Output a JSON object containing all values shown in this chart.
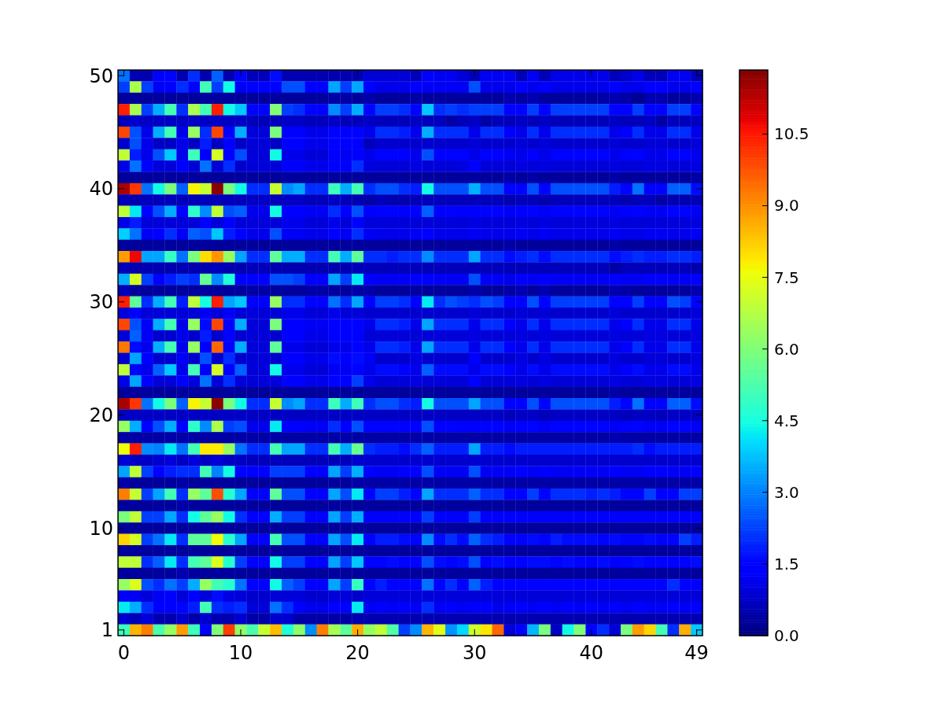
{
  "chart_data": {
    "type": "heatmap",
    "categories": [
      "0",
      null,
      null,
      null,
      null,
      null,
      null,
      null,
      null,
      null,
      "10",
      null,
      null,
      null,
      null,
      null,
      null,
      null,
      null,
      null,
      "20",
      null,
      null,
      null,
      null,
      null,
      null,
      null,
      null,
      null,
      "30",
      null,
      null,
      null,
      null,
      null,
      null,
      null,
      null,
      null,
      "40",
      null,
      null,
      null,
      null,
      null,
      null,
      null,
      null,
      "49"
    ],
    "y_categories": [
      "50",
      null,
      null,
      null,
      null,
      null,
      null,
      null,
      null,
      null,
      "40",
      null,
      null,
      null,
      null,
      null,
      null,
      null,
      null,
      null,
      "30",
      null,
      null,
      null,
      null,
      null,
      null,
      null,
      null,
      null,
      "20",
      null,
      null,
      null,
      null,
      null,
      null,
      null,
      null,
      null,
      "10",
      null,
      null,
      null,
      null,
      null,
      null,
      null,
      null,
      "1"
    ],
    "clim": [
      0,
      11.84
    ],
    "cticks": [
      {
        "value": 0,
        "label": "0.0"
      },
      1.5,
      {
        "value": 3,
        "label": "3.0"
      },
      4.5,
      {
        "value": 6,
        "label": "6.0"
      },
      7.5,
      {
        "value": 9,
        "label": "9.0"
      },
      10.5
    ],
    "cells": [
      [
        2.8,
        0.5,
        0.5,
        1.4,
        1.5,
        0.5,
        2.0,
        0.5,
        2.6,
        0.5,
        1.4,
        0.6,
        0.6,
        1.6,
        0.5,
        0.5,
        0.5,
        0.5,
        0.5,
        0.5,
        0.5,
        0.9,
        0.9,
        0.9,
        0.9,
        0.6,
        1.4,
        1.2,
        1.2,
        0.9,
        0.6,
        1.2,
        1.2,
        1.2,
        0.6,
        1.2,
        0.6,
        1.1,
        1.1,
        1.1,
        1.1,
        1.1,
        0.6,
        0.8,
        1.1,
        0.6,
        0.6,
        1.2,
        1.2,
        0.6
      ],
      [
        2.2,
        6.6,
        2.2,
        1.2,
        1.4,
        2.0,
        1.5,
        5.1,
        2.2,
        4.4,
        1.2,
        1.4,
        1.4,
        1.4,
        2.4,
        2.4,
        1.4,
        1.4,
        3.4,
        2.2,
        3.4,
        1.4,
        1.1,
        1.1,
        1.1,
        1.4,
        1.2,
        1.2,
        1.2,
        1.2,
        2.4,
        1.1,
        1.1,
        1.1,
        1.4,
        1.1,
        1.4,
        1.1,
        1.1,
        1.1,
        1.1,
        1.1,
        1.4,
        1.1,
        1.1,
        1.4,
        1.4,
        1.1,
        1.1,
        1.4
      ],
      [
        0.3,
        0.3,
        0.3,
        0.3,
        0.3,
        0.3,
        0.3,
        0.3,
        0.3,
        0.3,
        0.3,
        0.3,
        0.3,
        0.3,
        0.3,
        0.3,
        0.3,
        0.3,
        0.4,
        0.4,
        0.3,
        0.4,
        0.3,
        0.3,
        0.3,
        0.4,
        0.3,
        0.3,
        0.3,
        0.3,
        0.3,
        0.3,
        0.3,
        0.5,
        0.4,
        0.5,
        0.3,
        0.3,
        0.3,
        0.3,
        0.3,
        0.4,
        0.5,
        0.4,
        0.2,
        0.5,
        0.5,
        0.3,
        0.3,
        0.5
      ],
      [
        10.4,
        6.6,
        2.2,
        3.5,
        5.1,
        2.0,
        6.6,
        5.1,
        10.4,
        4.4,
        3.8,
        1.5,
        1.5,
        6.0,
        2.2,
        2.0,
        1.5,
        1.5,
        3.1,
        2.2,
        3.5,
        1.5,
        2.2,
        2.2,
        2.0,
        1.5,
        3.8,
        2.0,
        2.2,
        2.0,
        2.2,
        2.2,
        2.2,
        1.5,
        1.5,
        2.2,
        1.5,
        2.2,
        2.2,
        2.2,
        2.2,
        2.2,
        1.5,
        1.5,
        2.2,
        1.5,
        1.5,
        2.2,
        2.2,
        1.5
      ],
      [
        0.6,
        0.8,
        0.7,
        0.7,
        0.7,
        0.7,
        0.7,
        0.7,
        0.7,
        0.7,
        0.7,
        0.6,
        0.6,
        0.6,
        0.7,
        0.7,
        0.6,
        0.6,
        0.7,
        0.6,
        0.6,
        0.7,
        0.6,
        0.6,
        0.6,
        0.7,
        0.6,
        0.6,
        0.4,
        0.6,
        0.7,
        0.4,
        0.6,
        0.6,
        0.7,
        0.6,
        0.7,
        0.6,
        0.6,
        0.6,
        0.6,
        0.6,
        0.7,
        0.6,
        0.6,
        0.7,
        0.4,
        0.6,
        0.6,
        0.7
      ],
      [
        9.9,
        2.4,
        1.1,
        3.5,
        5.1,
        1.1,
        6.3,
        2.0,
        9.9,
        1.4,
        3.5,
        0.9,
        0.9,
        5.9,
        1.4,
        1.4,
        1.1,
        1.1,
        1.5,
        1.4,
        1.5,
        1.1,
        2.0,
        2.0,
        1.8,
        1.1,
        3.5,
        2.0,
        2.0,
        2.0,
        1.1,
        2.0,
        2.0,
        1.4,
        1.1,
        2.0,
        1.1,
        2.0,
        2.0,
        2.0,
        2.0,
        2.0,
        1.1,
        1.4,
        2.0,
        1.1,
        1.1,
        2.0,
        2.0,
        1.1
      ],
      [
        0.8,
        2.4,
        1.1,
        0.7,
        0.7,
        1.1,
        0.7,
        1.8,
        0.7,
        1.4,
        0.7,
        0.9,
        0.9,
        0.7,
        1.4,
        1.4,
        1.1,
        1.1,
        1.4,
        1.4,
        1.3,
        0.6,
        0.8,
        0.8,
        0.8,
        0.8,
        0.8,
        0.8,
        0.8,
        0.8,
        0.9,
        0.8,
        0.8,
        0.8,
        0.9,
        0.8,
        0.9,
        0.8,
        0.8,
        0.8,
        0.8,
        0.8,
        0.9,
        0.8,
        0.8,
        0.9,
        0.9,
        0.8,
        0.8,
        0.9
      ],
      [
        6.9,
        1.8,
        1.1,
        2.4,
        3.8,
        1.1,
        5.0,
        1.4,
        7.2,
        1.4,
        2.4,
        0.9,
        0.9,
        4.4,
        1.1,
        1.1,
        0.9,
        0.9,
        1.4,
        1.2,
        1.4,
        1.1,
        1.5,
        1.5,
        1.4,
        1.1,
        2.4,
        1.5,
        1.5,
        1.5,
        1.1,
        1.5,
        1.5,
        1.2,
        1.1,
        1.4,
        1.1,
        1.5,
        1.5,
        1.5,
        1.5,
        1.5,
        1.1,
        1.4,
        1.5,
        1.1,
        1.1,
        1.5,
        1.5,
        1.1
      ],
      [
        1.1,
        2.8,
        1.4,
        0.9,
        0.9,
        1.4,
        0.9,
        2.8,
        0.9,
        2.0,
        0.8,
        0.9,
        0.9,
        0.9,
        1.4,
        1.4,
        1.1,
        1.1,
        1.4,
        1.4,
        2.0,
        1.0,
        0.9,
        0.9,
        0.9,
        1.0,
        0.9,
        0.9,
        0.9,
        1.0,
        1.4,
        0.9,
        0.9,
        0.9,
        1.0,
        0.9,
        1.0,
        0.9,
        0.9,
        0.9,
        0.9,
        0.9,
        1.0,
        0.9,
        0.9,
        1.0,
        1.0,
        0.9,
        0.9,
        1.0
      ],
      [
        0.3,
        0.3,
        0.3,
        0.3,
        0.3,
        0.3,
        0.3,
        0.3,
        0.3,
        0.3,
        0.3,
        0.3,
        0.3,
        0.3,
        0.3,
        0.3,
        0.3,
        0.3,
        0.3,
        0.3,
        0.3,
        0.3,
        0.3,
        0.3,
        0.3,
        0.3,
        0.3,
        0.3,
        0.3,
        0.3,
        0.3,
        0.3,
        0.3,
        0.4,
        0.3,
        0.4,
        0.3,
        0.3,
        0.3,
        0.3,
        0.3,
        0.3,
        0.4,
        0.3,
        0.3,
        0.3,
        0.3,
        0.3,
        0.3,
        0.4
      ],
      [
        11.4,
        10.1,
        2.8,
        4.4,
        5.9,
        2.6,
        7.7,
        7.0,
        11.7,
        5.9,
        4.4,
        2.0,
        2.0,
        7.0,
        3.1,
        3.4,
        2.0,
        2.0,
        5.0,
        3.5,
        5.1,
        2.0,
        2.4,
        2.4,
        2.0,
        1.8,
        4.4,
        2.4,
        2.4,
        2.4,
        3.5,
        2.4,
        2.4,
        1.5,
        1.5,
        2.4,
        1.5,
        2.4,
        2.4,
        2.4,
        2.4,
        2.4,
        1.8,
        1.5,
        2.8,
        1.5,
        1.5,
        2.6,
        2.6,
        1.6
      ],
      [
        0.6,
        0.5,
        0.6,
        0.6,
        0.6,
        0.6,
        0.6,
        0.6,
        0.6,
        0.6,
        0.6,
        0.7,
        0.7,
        0.6,
        0.7,
        0.7,
        0.6,
        0.6,
        0.7,
        0.6,
        0.5,
        0.4,
        0.6,
        0.5,
        0.5,
        0.6,
        0.6,
        0.6,
        0.6,
        0.6,
        0.6,
        0.6,
        0.6,
        0.5,
        0.6,
        0.6,
        0.5,
        0.6,
        0.6,
        0.6,
        0.6,
        0.6,
        0.6,
        0.5,
        0.6,
        0.6,
        0.4,
        0.5,
        0.5,
        0.6
      ],
      [
        6.9,
        4.2,
        1.5,
        2.4,
        3.5,
        1.5,
        4.8,
        3.1,
        6.9,
        2.4,
        2.6,
        1.1,
        1.1,
        4.4,
        1.4,
        1.4,
        1.2,
        1.2,
        2.0,
        1.4,
        2.4,
        1.4,
        1.5,
        1.5,
        1.4,
        1.4,
        2.6,
        1.4,
        1.5,
        1.4,
        1.4,
        1.5,
        1.5,
        1.2,
        1.4,
        1.5,
        1.2,
        1.5,
        1.5,
        1.5,
        1.5,
        1.5,
        1.2,
        1.4,
        1.5,
        1.2,
        1.2,
        1.5,
        1.5,
        1.2
      ],
      [
        1.1,
        1.8,
        0.9,
        0.9,
        0.9,
        0.9,
        0.9,
        1.3,
        0.9,
        1.3,
        0.9,
        0.9,
        0.9,
        0.9,
        1.1,
        1.1,
        0.9,
        0.9,
        1.1,
        0.9,
        1.4,
        0.9,
        0.9,
        0.9,
        0.9,
        0.9,
        0.9,
        0.9,
        0.9,
        0.9,
        1.0,
        0.9,
        0.9,
        0.9,
        1.0,
        0.9,
        1.0,
        0.9,
        0.9,
        0.9,
        0.9,
        0.9,
        1.0,
        0.9,
        0.9,
        0.9,
        0.9,
        0.9,
        0.9,
        1.0
      ],
      [
        3.9,
        2.8,
        1.2,
        1.3,
        2.0,
        1.2,
        2.6,
        2.4,
        3.8,
        1.8,
        1.5,
        1.1,
        1.1,
        2.4,
        1.2,
        1.2,
        1.1,
        1.1,
        1.4,
        1.2,
        2.0,
        1.2,
        1.1,
        1.1,
        1.1,
        1.2,
        1.4,
        1.1,
        1.1,
        1.1,
        1.2,
        1.1,
        1.1,
        1.1,
        1.2,
        1.1,
        1.2,
        1.1,
        1.1,
        1.1,
        1.1,
        1.1,
        1.2,
        1.1,
        1.1,
        1.2,
        1.2,
        1.1,
        1.1,
        1.2
      ],
      [
        0.3,
        0.3,
        0.3,
        0.3,
        0.3,
        0.3,
        0.3,
        0.3,
        0.3,
        0.3,
        0.3,
        0.3,
        0.3,
        0.3,
        0.3,
        0.3,
        0.3,
        0.3,
        0.3,
        0.3,
        0.3,
        0.3,
        0.3,
        0.3,
        0.3,
        0.3,
        0.3,
        0.3,
        0.3,
        0.3,
        0.3,
        0.3,
        0.3,
        0.4,
        0.3,
        0.3,
        0.3,
        0.3,
        0.3,
        0.3,
        0.3,
        0.3,
        0.4,
        0.3,
        0.3,
        0.3,
        0.3,
        0.3,
        0.3,
        0.3
      ],
      [
        8.8,
        10.7,
        3.4,
        3.4,
        4.9,
        2.8,
        5.9,
        8.0,
        8.9,
        6.3,
        3.4,
        2.0,
        2.0,
        5.5,
        3.5,
        3.5,
        2.0,
        2.0,
        5.1,
        3.5,
        5.5,
        2.0,
        2.0,
        1.8,
        2.0,
        2.0,
        3.1,
        2.0,
        2.0,
        2.0,
        3.4,
        2.0,
        2.0,
        1.6,
        1.8,
        2.0,
        1.6,
        2.0,
        2.0,
        2.0,
        2.0,
        2.0,
        1.6,
        1.8,
        2.0,
        1.8,
        1.8,
        2.0,
        2.0,
        1.8
      ],
      [
        0.6,
        0.5,
        0.5,
        0.5,
        0.5,
        0.5,
        0.5,
        0.5,
        0.6,
        0.5,
        0.5,
        0.6,
        0.6,
        0.5,
        0.5,
        0.5,
        0.5,
        0.5,
        0.5,
        0.5,
        0.6,
        0.6,
        0.6,
        0.6,
        0.6,
        0.6,
        0.6,
        0.6,
        0.6,
        0.6,
        0.6,
        0.6,
        0.6,
        0.6,
        0.6,
        0.6,
        0.6,
        0.6,
        0.6,
        0.6,
        0.6,
        0.6,
        0.4,
        0.6,
        0.6,
        0.6,
        0.6,
        0.6,
        0.6,
        0.5
      ],
      [
        3.5,
        7.2,
        2.2,
        1.4,
        1.8,
        2.2,
        2.0,
        5.6,
        3.1,
        4.6,
        1.4,
        1.4,
        1.4,
        2.4,
        2.4,
        2.2,
        1.4,
        1.4,
        3.4,
        2.2,
        4.2,
        1.4,
        1.2,
        1.2,
        1.2,
        1.4,
        1.4,
        1.2,
        1.2,
        1.2,
        2.4,
        1.2,
        1.2,
        1.1,
        1.4,
        1.2,
        1.4,
        1.2,
        1.2,
        1.2,
        1.2,
        1.2,
        1.4,
        1.2,
        1.2,
        1.4,
        1.4,
        1.2,
        1.2,
        1.4
      ],
      [
        0.6,
        0.3,
        0.3,
        0.3,
        0.3,
        0.3,
        0.3,
        0.3,
        0.3,
        0.3,
        0.3,
        0.4,
        0.4,
        0.3,
        0.3,
        0.3,
        0.4,
        0.4,
        0.3,
        0.3,
        0.4,
        0.4,
        0.3,
        0.3,
        0.3,
        0.4,
        0.3,
        0.3,
        0.3,
        0.3,
        0.4,
        0.3,
        0.3,
        0.4,
        0.5,
        0.3,
        0.5,
        0.3,
        0.3,
        0.3,
        0.3,
        0.3,
        0.5,
        0.4,
        0.3,
        0.3,
        0.3,
        0.3,
        0.3,
        0.5
      ],
      [
        10.4,
        5.5,
        2.0,
        3.5,
        5.1,
        1.8,
        6.9,
        4.5,
        10.4,
        3.4,
        3.8,
        1.4,
        1.4,
        6.3,
        2.0,
        2.0,
        1.5,
        1.5,
        2.8,
        2.0,
        3.4,
        1.4,
        2.2,
        2.2,
        2.0,
        1.4,
        4.2,
        2.0,
        2.4,
        2.2,
        2.0,
        2.4,
        2.2,
        1.4,
        1.5,
        2.4,
        1.5,
        2.2,
        2.2,
        2.2,
        2.2,
        2.2,
        1.5,
        1.5,
        2.2,
        1.5,
        1.5,
        2.4,
        2.2,
        1.5
      ],
      [
        0.9,
        1.5,
        0.9,
        0.9,
        0.9,
        0.9,
        0.9,
        1.2,
        0.9,
        1.2,
        0.9,
        0.9,
        0.9,
        0.9,
        1.1,
        1.1,
        0.9,
        0.9,
        1.1,
        0.9,
        0.9,
        0.8,
        0.8,
        0.8,
        0.8,
        0.8,
        0.8,
        0.8,
        0.8,
        0.8,
        0.9,
        0.8,
        0.8,
        0.8,
        0.9,
        0.8,
        0.9,
        0.8,
        0.8,
        0.8,
        0.8,
        0.8,
        0.9,
        0.8,
        0.8,
        0.8,
        0.8,
        0.8,
        0.8,
        0.9
      ],
      [
        9.9,
        2.4,
        1.2,
        3.5,
        5.1,
        1.1,
        6.3,
        1.6,
        9.9,
        1.4,
        3.5,
        0.9,
        0.9,
        5.9,
        1.4,
        1.4,
        1.2,
        1.2,
        1.5,
        1.4,
        1.5,
        1.1,
        2.0,
        2.0,
        1.8,
        1.1,
        3.4,
        2.0,
        2.0,
        2.0,
        1.1,
        2.0,
        2.0,
        1.4,
        1.1,
        2.0,
        1.1,
        2.0,
        2.0,
        2.0,
        2.0,
        2.0,
        1.1,
        1.4,
        2.0,
        1.1,
        1.1,
        2.0,
        2.0,
        1.1
      ],
      [
        0.9,
        2.6,
        1.2,
        0.8,
        0.8,
        1.1,
        0.8,
        1.8,
        0.8,
        1.5,
        0.8,
        0.9,
        0.9,
        0.8,
        1.4,
        1.4,
        1.1,
        1.1,
        1.4,
        1.4,
        1.3,
        0.9,
        0.9,
        0.9,
        0.9,
        0.9,
        0.9,
        0.9,
        0.9,
        0.9,
        1.0,
        0.9,
        0.9,
        0.9,
        1.0,
        0.9,
        1.0,
        0.9,
        0.9,
        0.9,
        0.9,
        0.9,
        1.0,
        0.9,
        0.9,
        1.0,
        1.0,
        0.9,
        0.9,
        1.0
      ],
      [
        9.3,
        1.6,
        1.1,
        3.5,
        5.1,
        1.1,
        6.3,
        1.4,
        9.5,
        1.4,
        3.5,
        0.9,
        0.9,
        5.5,
        1.1,
        1.1,
        0.9,
        0.9,
        1.1,
        1.1,
        1.5,
        1.1,
        2.0,
        2.0,
        1.8,
        1.1,
        3.4,
        2.0,
        2.0,
        2.0,
        1.1,
        2.0,
        2.0,
        1.4,
        1.1,
        2.0,
        1.1,
        2.0,
        2.0,
        2.0,
        2.0,
        2.0,
        1.1,
        1.4,
        2.0,
        1.1,
        1.1,
        2.0,
        2.0,
        1.1
      ],
      [
        0.8,
        3.4,
        1.3,
        0.8,
        0.8,
        1.2,
        0.8,
        2.4,
        0.8,
        2.0,
        0.8,
        0.9,
        0.9,
        0.8,
        1.4,
        1.4,
        1.1,
        1.1,
        1.6,
        1.4,
        1.6,
        1.2,
        0.8,
        0.8,
        0.8,
        1.0,
        0.8,
        0.8,
        0.8,
        0.8,
        1.4,
        0.8,
        0.8,
        0.8,
        1.0,
        0.8,
        1.0,
        0.8,
        0.8,
        0.8,
        0.8,
        0.8,
        1.0,
        0.8,
        0.8,
        0.9,
        0.9,
        0.8,
        0.8,
        1.0
      ],
      [
        6.9,
        1.5,
        1.1,
        2.6,
        3.8,
        1.1,
        5.1,
        1.4,
        7.2,
        1.4,
        2.6,
        0.9,
        0.9,
        4.4,
        1.1,
        1.1,
        0.9,
        0.9,
        1.2,
        1.2,
        1.5,
        1.1,
        1.6,
        1.6,
        1.5,
        1.1,
        2.6,
        1.6,
        1.6,
        1.6,
        1.1,
        1.6,
        1.6,
        1.4,
        1.1,
        1.6,
        1.1,
        1.6,
        1.6,
        1.6,
        1.6,
        1.6,
        1.1,
        1.4,
        1.6,
        1.1,
        1.1,
        1.6,
        1.6,
        1.1
      ],
      [
        1.1,
        3.4,
        1.4,
        0.9,
        0.9,
        1.3,
        0.9,
        2.8,
        0.9,
        2.0,
        0.9,
        0.9,
        0.9,
        0.9,
        1.4,
        1.4,
        1.1,
        1.1,
        1.5,
        1.4,
        2.2,
        1.1,
        0.9,
        0.9,
        0.9,
        1.0,
        0.9,
        0.9,
        0.9,
        0.9,
        1.4,
        0.9,
        0.9,
        0.9,
        1.0,
        0.9,
        1.0,
        0.9,
        0.9,
        0.9,
        0.9,
        0.9,
        1.0,
        0.9,
        0.9,
        1.0,
        1.0,
        0.9,
        0.9,
        1.0
      ],
      [
        0.3,
        0.3,
        0.3,
        0.3,
        0.3,
        0.3,
        0.3,
        0.3,
        0.3,
        0.3,
        0.3,
        0.3,
        0.3,
        0.3,
        0.3,
        0.3,
        0.3,
        0.3,
        0.3,
        0.3,
        0.3,
        0.3,
        0.3,
        0.3,
        0.3,
        0.3,
        0.3,
        0.3,
        0.3,
        0.3,
        0.3,
        0.3,
        0.3,
        0.3,
        0.3,
        0.3,
        0.3,
        0.3,
        0.3,
        0.3,
        0.3,
        0.3,
        0.4,
        0.3,
        0.3,
        0.3,
        0.3,
        0.3,
        0.3,
        0.3
      ],
      [
        11.4,
        10.1,
        2.8,
        4.4,
        5.9,
        2.6,
        7.7,
        7.0,
        11.7,
        5.9,
        4.4,
        2.0,
        2.0,
        7.0,
        3.1,
        3.4,
        2.0,
        2.0,
        5.0,
        3.5,
        5.0,
        2.0,
        2.4,
        2.4,
        2.0,
        1.8,
        4.4,
        2.4,
        2.4,
        2.4,
        3.4,
        2.4,
        2.4,
        1.5,
        1.5,
        2.4,
        1.5,
        2.4,
        2.4,
        2.4,
        2.4,
        2.4,
        1.8,
        1.5,
        2.8,
        1.5,
        1.5,
        2.6,
        2.6,
        1.6
      ],
      [
        0.7,
        0.7,
        0.7,
        0.7,
        0.7,
        0.7,
        0.7,
        0.7,
        0.7,
        0.7,
        0.7,
        0.7,
        0.7,
        0.7,
        0.7,
        0.7,
        0.7,
        0.7,
        0.7,
        0.7,
        0.7,
        0.7,
        0.7,
        0.7,
        0.7,
        0.7,
        0.7,
        0.7,
        0.7,
        0.7,
        0.7,
        0.7,
        0.7,
        0.6,
        0.7,
        0.7,
        0.6,
        0.7,
        0.7,
        0.7,
        0.7,
        0.7,
        0.7,
        0.6,
        0.7,
        0.7,
        0.6,
        0.7,
        0.7,
        0.7
      ],
      [
        6.3,
        3.5,
        1.5,
        2.4,
        3.5,
        1.5,
        4.8,
        3.1,
        6.6,
        2.2,
        2.4,
        1.1,
        1.1,
        4.2,
        1.4,
        1.4,
        1.2,
        1.2,
        2.0,
        1.4,
        2.4,
        1.5,
        1.5,
        1.5,
        1.4,
        1.4,
        2.4,
        1.4,
        1.5,
        1.4,
        1.4,
        1.5,
        1.5,
        1.2,
        1.4,
        1.5,
        1.2,
        1.5,
        1.5,
        1.5,
        1.5,
        1.5,
        1.2,
        1.4,
        1.5,
        1.2,
        1.2,
        1.5,
        1.5,
        1.2
      ],
      [
        0.4,
        0.4,
        0.4,
        0.4,
        0.4,
        0.4,
        0.4,
        0.4,
        0.4,
        0.4,
        0.4,
        0.4,
        0.4,
        0.4,
        0.4,
        0.4,
        0.4,
        0.4,
        0.4,
        0.4,
        0.4,
        0.4,
        0.4,
        0.4,
        0.4,
        0.4,
        0.4,
        0.4,
        0.4,
        0.4,
        0.4,
        0.4,
        0.4,
        0.4,
        0.4,
        0.4,
        0.4,
        0.4,
        0.4,
        0.4,
        0.4,
        0.4,
        0.5,
        0.4,
        0.4,
        0.4,
        0.4,
        0.4,
        0.4,
        0.4
      ],
      [
        7.6,
        10.4,
        3.1,
        3.0,
        4.2,
        2.8,
        5.1,
        7.8,
        7.8,
        6.3,
        2.8,
        2.0,
        2.0,
        5.1,
        3.4,
        3.4,
        2.0,
        2.0,
        5.1,
        3.5,
        5.6,
        2.0,
        1.8,
        1.8,
        1.6,
        2.0,
        2.6,
        1.8,
        1.8,
        1.8,
        3.4,
        1.8,
        1.8,
        1.6,
        1.8,
        1.8,
        1.8,
        1.8,
        1.8,
        1.8,
        1.8,
        1.8,
        1.8,
        1.8,
        2.0,
        1.6,
        1.8,
        1.8,
        1.8,
        1.8
      ],
      [
        0.9,
        0.7,
        0.7,
        0.8,
        0.9,
        0.7,
        0.9,
        0.7,
        0.9,
        0.7,
        0.7,
        0.6,
        0.6,
        0.6,
        0.6,
        0.6,
        0.6,
        0.6,
        0.6,
        0.6,
        0.8,
        0.8,
        0.8,
        0.8,
        0.8,
        0.8,
        0.8,
        0.8,
        0.8,
        0.8,
        0.8,
        0.8,
        0.8,
        0.8,
        0.8,
        0.8,
        0.8,
        0.8,
        0.8,
        0.8,
        0.8,
        0.8,
        0.8,
        0.8,
        0.8,
        0.8,
        0.8,
        0.8,
        0.8,
        0.8
      ],
      [
        3.4,
        6.9,
        2.2,
        1.5,
        1.8,
        2.0,
        2.0,
        5.1,
        3.0,
        4.4,
        1.5,
        1.4,
        1.4,
        2.2,
        2.2,
        2.2,
        1.4,
        1.4,
        3.4,
        2.2,
        3.5,
        1.5,
        1.2,
        1.2,
        1.4,
        1.4,
        2.4,
        1.2,
        1.2,
        1.2,
        2.4,
        1.2,
        1.2,
        1.2,
        1.4,
        1.2,
        1.4,
        1.2,
        1.2,
        1.2,
        1.2,
        1.2,
        1.4,
        1.2,
        1.2,
        1.4,
        1.4,
        1.2,
        1.2,
        1.4
      ],
      [
        0.4,
        0.3,
        0.3,
        0.3,
        0.3,
        0.4,
        0.3,
        0.3,
        0.3,
        0.3,
        0.3,
        0.3,
        0.3,
        0.3,
        0.3,
        0.3,
        0.3,
        0.3,
        0.3,
        0.3,
        0.4,
        0.4,
        0.4,
        0.4,
        0.4,
        0.4,
        0.4,
        0.4,
        0.4,
        0.4,
        0.4,
        0.4,
        0.4,
        0.4,
        0.4,
        0.4,
        0.4,
        0.4,
        0.4,
        0.4,
        0.4,
        0.4,
        0.4,
        0.4,
        0.4,
        0.4,
        0.4,
        0.4,
        0.4,
        0.4
      ],
      [
        9.2,
        7.0,
        2.2,
        3.4,
        5.1,
        2.0,
        6.3,
        5.5,
        9.8,
        4.7,
        3.4,
        1.4,
        1.4,
        5.5,
        2.4,
        2.4,
        1.4,
        1.4,
        3.4,
        2.4,
        4.2,
        1.5,
        2.2,
        2.2,
        1.8,
        1.5,
        3.4,
        2.0,
        2.0,
        2.0,
        2.6,
        2.0,
        2.0,
        1.5,
        1.5,
        2.2,
        1.5,
        2.0,
        2.0,
        2.0,
        1.8,
        2.0,
        1.8,
        1.5,
        1.5,
        2.2,
        1.5,
        1.5,
        2.2,
        2.2
      ],
      [
        0.3,
        0.3,
        0.3,
        0.3,
        0.3,
        0.4,
        0.3,
        0.3,
        0.3,
        0.3,
        0.3,
        0.3,
        0.3,
        0.3,
        0.3,
        0.3,
        0.3,
        0.3,
        0.3,
        0.3,
        0.3,
        0.3,
        0.3,
        0.3,
        0.3,
        0.3,
        0.3,
        0.3,
        0.3,
        0.3,
        0.3,
        0.3,
        0.3,
        0.3,
        0.3,
        0.3,
        0.3,
        0.3,
        0.3,
        0.3,
        0.3,
        0.3,
        0.3,
        0.3,
        0.3,
        0.3,
        0.3,
        0.3,
        0.3,
        0.3
      ],
      [
        5.9,
        6.9,
        2.2,
        2.2,
        3.4,
        2.0,
        4.4,
        5.5,
        6.3,
        4.4,
        2.0,
        1.4,
        1.4,
        3.5,
        2.2,
        2.2,
        1.4,
        1.4,
        3.4,
        2.2,
        3.5,
        1.4,
        1.4,
        1.4,
        1.4,
        1.4,
        2.2,
        1.4,
        1.4,
        1.4,
        2.2,
        1.4,
        1.4,
        1.3,
        1.4,
        1.4,
        1.4,
        1.4,
        1.4,
        1.4,
        1.4,
        1.4,
        1.4,
        1.4,
        1.4,
        1.4,
        1.4,
        1.4,
        1.4,
        1.4
      ],
      [
        0.3,
        0.3,
        0.3,
        0.3,
        0.3,
        0.3,
        0.3,
        0.3,
        0.3,
        0.3,
        0.3,
        0.3,
        0.3,
        0.3,
        0.3,
        0.3,
        0.3,
        0.3,
        0.3,
        0.3,
        0.3,
        0.3,
        0.3,
        0.3,
        0.3,
        0.3,
        0.3,
        0.3,
        0.3,
        0.3,
        0.3,
        0.3,
        0.3,
        0.3,
        0.3,
        0.3,
        0.3,
        0.3,
        0.3,
        0.3,
        0.3,
        0.3,
        0.3,
        0.3,
        0.3,
        0.3,
        0.3,
        0.3,
        0.3,
        0.3
      ],
      [
        8.1,
        7.2,
        2.2,
        2.8,
        4.2,
        2.0,
        5.5,
        5.5,
        7.6,
        4.7,
        3.4,
        1.4,
        1.4,
        5.1,
        2.4,
        2.4,
        1.4,
        1.4,
        3.4,
        2.4,
        4.2,
        1.5,
        1.8,
        1.8,
        1.6,
        1.5,
        3.1,
        1.6,
        2.0,
        1.6,
        2.6,
        2.0,
        1.8,
        1.5,
        1.5,
        1.6,
        1.5,
        1.8,
        1.6,
        1.6,
        1.6,
        1.5,
        1.6,
        1.5,
        1.5,
        1.6,
        1.5,
        1.5,
        2.2,
        1.8
      ],
      [
        0.3,
        0.3,
        0.3,
        0.3,
        0.3,
        0.3,
        0.3,
        0.3,
        0.3,
        0.3,
        0.3,
        0.3,
        0.3,
        0.3,
        0.3,
        0.3,
        0.3,
        0.3,
        0.3,
        0.3,
        0.3,
        0.3,
        0.3,
        0.3,
        0.3,
        0.3,
        0.3,
        0.3,
        0.3,
        0.3,
        0.3,
        0.3,
        0.3,
        0.3,
        0.3,
        0.3,
        0.3,
        0.3,
        0.3,
        0.3,
        0.3,
        0.3,
        0.3,
        0.3,
        0.3,
        0.3,
        0.3,
        0.3,
        0.3,
        0.3
      ],
      [
        6.9,
        6.9,
        2.0,
        2.6,
        4.2,
        2.0,
        5.1,
        5.5,
        7.3,
        4.7,
        2.2,
        1.4,
        1.4,
        4.4,
        2.2,
        2.2,
        1.4,
        1.4,
        3.4,
        2.2,
        3.8,
        1.5,
        1.5,
        1.6,
        1.5,
        1.5,
        2.4,
        1.6,
        1.5,
        1.6,
        2.4,
        1.4,
        1.6,
        1.4,
        1.5,
        1.6,
        1.6,
        1.5,
        1.6,
        1.5,
        1.4,
        1.6,
        1.4,
        1.5,
        1.6,
        1.5,
        1.5,
        1.4,
        1.5,
        1.6
      ],
      [
        0.3,
        0.3,
        0.3,
        0.3,
        0.3,
        0.5,
        0.3,
        0.3,
        0.3,
        0.3,
        0.3,
        0.3,
        0.3,
        0.3,
        0.3,
        0.3,
        0.3,
        0.3,
        0.3,
        0.3,
        0.3,
        0.3,
        0.3,
        0.3,
        0.3,
        0.3,
        0.3,
        0.3,
        0.3,
        0.3,
        0.3,
        0.3,
        0.3,
        0.3,
        0.3,
        0.3,
        0.3,
        0.3,
        0.3,
        0.3,
        0.3,
        0.3,
        0.3,
        0.3,
        0.3,
        0.3,
        0.3,
        0.3,
        0.3,
        0.3
      ],
      [
        6.3,
        7.3,
        2.4,
        2.0,
        2.8,
        2.2,
        3.5,
        6.3,
        5.1,
        4.7,
        2.8,
        1.4,
        1.4,
        4.4,
        2.6,
        2.2,
        1.4,
        1.4,
        3.4,
        2.2,
        4.9,
        1.5,
        1.8,
        1.5,
        1.5,
        1.5,
        2.8,
        1.5,
        2.0,
        1.4,
        2.6,
        1.8,
        1.4,
        1.4,
        1.5,
        1.4,
        1.5,
        1.4,
        1.5,
        1.4,
        1.4,
        1.5,
        1.4,
        1.5,
        1.4,
        1.5,
        1.4,
        2.0,
        1.5,
        1.4
      ],
      [
        1.4,
        1.2,
        0.9,
        1.2,
        1.4,
        0.9,
        1.4,
        0.9,
        1.6,
        1.0,
        0.9,
        0.8,
        0.8,
        0.9,
        0.9,
        0.9,
        0.8,
        0.8,
        0.9,
        0.9,
        0.8,
        0.9,
        0.9,
        0.9,
        0.9,
        0.9,
        0.9,
        0.9,
        0.9,
        0.9,
        0.9,
        0.9,
        0.9,
        0.9,
        0.9,
        0.9,
        0.9,
        0.9,
        0.9,
        0.9,
        0.9,
        0.9,
        0.9,
        0.9,
        0.9,
        0.9,
        0.9,
        0.9,
        0.9,
        0.9
      ],
      [
        4.2,
        3.5,
        2.0,
        1.4,
        1.4,
        1.5,
        1.8,
        5.1,
        2.0,
        1.8,
        2.0,
        0.9,
        0.9,
        2.8,
        2.0,
        1.4,
        1.1,
        1.1,
        1.4,
        1.4,
        4.2,
        1.2,
        1.4,
        1.2,
        1.4,
        1.2,
        2.0,
        1.2,
        1.4,
        1.2,
        1.4,
        1.4,
        1.1,
        1.2,
        1.4,
        1.2,
        1.3,
        1.2,
        1.3,
        1.2,
        1.3,
        1.2,
        1.4,
        1.2,
        1.3,
        1.2,
        1.2,
        1.3,
        1.2,
        1.3
      ],
      [
        0.8,
        0.6,
        0.9,
        0.5,
        0.5,
        0.8,
        0.4,
        0.8,
        0.5,
        0.5,
        0.8,
        0.4,
        0.4,
        0.8,
        0.8,
        0.4,
        0.4,
        0.4,
        0.4,
        0.4,
        0.5,
        0.5,
        0.5,
        0.5,
        0.5,
        0.5,
        0.5,
        0.5,
        0.5,
        0.5,
        0.5,
        0.5,
        0.5,
        0.5,
        0.5,
        0.5,
        0.5,
        0.5,
        0.5,
        0.5,
        0.5,
        0.5,
        0.5,
        0.5,
        0.5,
        0.5,
        0.5,
        0.5,
        0.5,
        0.5
      ],
      [
        5.0,
        8.5,
        9.2,
        5.2,
        6.3,
        8.8,
        5.0,
        1.4,
        6.0,
        10.0,
        6.2,
        5.2,
        7.0,
        8.4,
        4.6,
        6.2,
        3.1,
        9.2,
        6.5,
        5.5,
        8.6,
        6.3,
        6.9,
        5.3,
        2.2,
        3.1,
        8.5,
        7.4,
        3.2,
        4.0,
        7.1,
        7.9,
        9.5,
        0.9,
        1.4,
        3.6,
        5.9,
        0.7,
        4.4,
        6.0,
        1.5,
        2.0,
        0.9,
        5.9,
        8.8,
        8.1,
        5.1,
        2.0,
        8.6,
        3.8
      ]
    ]
  }
}
